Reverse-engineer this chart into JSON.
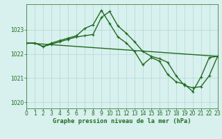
{
  "line1_x": [
    0,
    1,
    2,
    3,
    4,
    5,
    6,
    7,
    8,
    9,
    10,
    11,
    12,
    13,
    14,
    15,
    16,
    17,
    18,
    19,
    20,
    21,
    22,
    23
  ],
  "line1_y": [
    1022.45,
    1022.45,
    1022.3,
    1022.45,
    1022.55,
    1022.65,
    1022.75,
    1023.05,
    1023.2,
    1023.8,
    1023.25,
    1022.7,
    1022.45,
    1022.1,
    1021.55,
    1021.85,
    1021.7,
    1021.15,
    1020.85,
    1020.75,
    1020.45,
    1021.05,
    1021.85,
    1021.9
  ],
  "line2_x": [
    0,
    1,
    2,
    3,
    4,
    5,
    6,
    7,
    8,
    9,
    10,
    11,
    12,
    13,
    14,
    15,
    16,
    17,
    18,
    19,
    20,
    21,
    22,
    23
  ],
  "line2_y": [
    1022.45,
    1022.45,
    1022.3,
    1022.4,
    1022.5,
    1022.6,
    1022.7,
    1022.75,
    1022.8,
    1023.5,
    1023.75,
    1023.15,
    1022.85,
    1022.5,
    1022.1,
    1021.9,
    1021.8,
    1021.65,
    1021.1,
    1020.7,
    1020.6,
    1020.65,
    1021.1,
    1021.9
  ],
  "line3_x": [
    0,
    23
  ],
  "line3_y": [
    1022.45,
    1021.9
  ],
  "line_color": "#1e6b1e",
  "background_color": "#d8f0ee",
  "grid_color": "#b0d8d5",
  "tick_color": "#1e6b1e",
  "label_color": "#1e6b1e",
  "xlabel": "Graphe pression niveau de la mer (hPa)",
  "ylim": [
    1019.75,
    1024.05
  ],
  "xlim": [
    0,
    23
  ],
  "yticks": [
    1020,
    1021,
    1022,
    1023
  ],
  "xticks": [
    0,
    1,
    2,
    3,
    4,
    5,
    6,
    7,
    8,
    9,
    10,
    11,
    12,
    13,
    14,
    15,
    16,
    17,
    18,
    19,
    20,
    21,
    22,
    23
  ],
  "tick_fontsize": 5.5,
  "xlabel_fontsize": 6.2,
  "marker_size": 3.5,
  "linewidth": 1.0
}
